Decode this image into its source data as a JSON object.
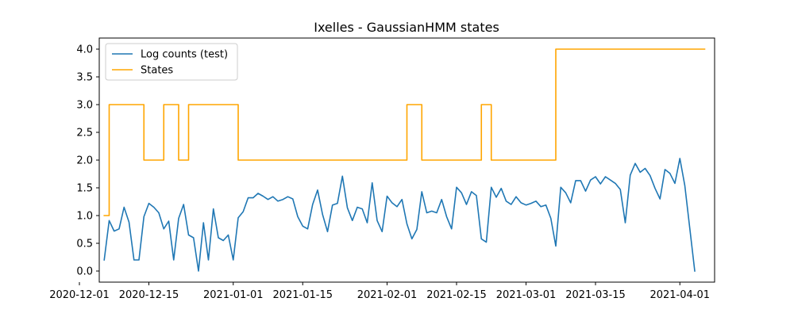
{
  "chart_data": {
    "type": "line",
    "title": "Ixelles - GaussianHMM states",
    "xlabel": "",
    "ylabel": "",
    "x_axis": {
      "type": "date",
      "range": [
        "2020-12-05",
        "2021-04-08"
      ],
      "ticks": [
        "2020-12-01",
        "2020-12-15",
        "2021-01-01",
        "2021-01-15",
        "2021-02-01",
        "2021-02-15",
        "2021-03-01",
        "2021-03-15",
        "2021-04-01"
      ],
      "tick_labels": [
        "2020-12-01",
        "2020-12-15",
        "2021-01-01",
        "2021-01-15",
        "2021-02-01",
        "2021-02-15",
        "2021-03-01",
        "2021-03-15",
        "2021-04-01"
      ]
    },
    "y_axis": {
      "range": [
        -0.2,
        4.2
      ],
      "ticks": [
        0.0,
        0.5,
        1.0,
        1.5,
        2.0,
        2.5,
        3.0,
        3.5,
        4.0
      ],
      "tick_labels": [
        "0.0",
        "0.5",
        "1.0",
        "1.5",
        "2.0",
        "2.5",
        "3.0",
        "3.5",
        "4.0"
      ]
    },
    "grid": false,
    "legend": {
      "placement": "upper-left",
      "entries": [
        "Log counts (test)",
        "States"
      ]
    },
    "series": [
      {
        "name": "Log counts (test)",
        "color": "#1f77b4",
        "style": "line",
        "start_date": "2020-12-06",
        "values": [
          0.2,
          0.91,
          0.72,
          0.76,
          1.15,
          0.88,
          0.2,
          0.2,
          0.98,
          1.22,
          1.15,
          1.05,
          0.76,
          0.9,
          0.2,
          0.95,
          1.2,
          0.65,
          0.6,
          0.0,
          0.87,
          0.2,
          1.12,
          0.6,
          0.55,
          0.65,
          0.2,
          0.96,
          1.07,
          1.32,
          1.32,
          1.4,
          1.35,
          1.29,
          1.34,
          1.26,
          1.29,
          1.34,
          1.3,
          0.98,
          0.81,
          0.76,
          1.2,
          1.46,
          1.02,
          0.71,
          1.19,
          1.22,
          1.71,
          1.14,
          0.91,
          1.15,
          1.12,
          0.87,
          1.59,
          0.91,
          0.71,
          1.35,
          1.23,
          1.16,
          1.29,
          0.85,
          0.58,
          0.75,
          1.43,
          1.05,
          1.08,
          1.05,
          1.29,
          0.98,
          0.76,
          1.51,
          1.41,
          1.2,
          1.43,
          1.36,
          0.58,
          0.52,
          1.51,
          1.33,
          1.49,
          1.26,
          1.2,
          1.34,
          1.23,
          1.19,
          1.22,
          1.26,
          1.16,
          1.19,
          0.95,
          0.45,
          1.51,
          1.41,
          1.23,
          1.63,
          1.63,
          1.44,
          1.64,
          1.7,
          1.57,
          1.7,
          1.64,
          1.58,
          1.47,
          0.87,
          1.73,
          1.94,
          1.78,
          1.85,
          1.72,
          1.49,
          1.3,
          1.83,
          1.76,
          1.58,
          2.03,
          1.54,
          0.77,
          0.0
        ]
      },
      {
        "name": "States",
        "color": "#ffa500",
        "style": "step-post",
        "segments": [
          {
            "start": "2020-12-06",
            "value": 1
          },
          {
            "start": "2020-12-07",
            "value": 3
          },
          {
            "start": "2020-12-14",
            "value": 2
          },
          {
            "start": "2020-12-18",
            "value": 3
          },
          {
            "start": "2020-12-21",
            "value": 2
          },
          {
            "start": "2020-12-23",
            "value": 3
          },
          {
            "start": "2021-01-02",
            "value": 2
          },
          {
            "start": "2021-02-05",
            "value": 3
          },
          {
            "start": "2021-02-08",
            "value": 2
          },
          {
            "start": "2021-02-20",
            "value": 3
          },
          {
            "start": "2021-02-22",
            "value": 2
          },
          {
            "start": "2021-03-07",
            "value": 4
          }
        ],
        "end": "2021-04-06"
      }
    ]
  }
}
